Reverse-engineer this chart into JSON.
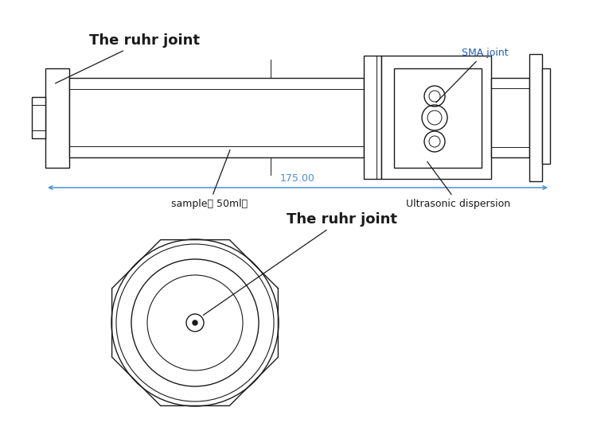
{
  "bg_color": "#ffffff",
  "line_color": "#1a1a1a",
  "dim_color": "#4a90d9",
  "text_color": "#1a1a1a",
  "sma_text_color": "#2060c0",
  "ruhr_fontsize": 13,
  "label_fontsize": 9,
  "dim_fontsize": 9,
  "sample_text": "sample（ 50ml）",
  "ultrasonic_text": "Ultrasonic dispersion",
  "sma_text": "SMA joint",
  "ruhr_text": "The ruhr joint",
  "dim_text": "175.00"
}
